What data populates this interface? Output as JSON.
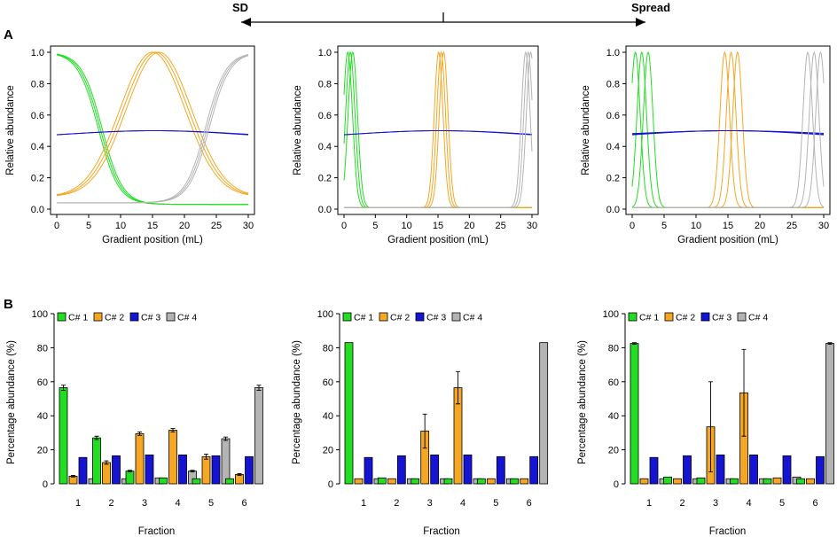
{
  "header": {
    "left_label": "SD",
    "right_label": "Spread"
  },
  "panel_labels": {
    "a": "A",
    "b": "B"
  },
  "colors": {
    "c1": "#22dd22",
    "c2": "#f5a623",
    "c3": "#1414d2",
    "c4": "#b4b4b4"
  },
  "chart_data": [
    {
      "type": "line",
      "panel": "A",
      "variant": "high SD",
      "title": "",
      "xlabel": "Gradient position (mL)",
      "ylabel": "Relative abundance",
      "xlim": [
        0,
        30
      ],
      "ylim": [
        0,
        1
      ],
      "xticks": [
        0,
        5,
        10,
        15,
        20,
        25,
        30
      ],
      "yticks": [
        0.0,
        0.2,
        0.4,
        0.6,
        0.8,
        1.0
      ],
      "series": [
        {
          "name": "C# 1",
          "shape": "sigmoid-decreasing",
          "x": [
            0,
            5,
            10,
            15,
            20,
            25,
            30
          ],
          "y": [
            1.0,
            0.78,
            0.24,
            0.06,
            0.05,
            0.04,
            0.03
          ]
        },
        {
          "name": "C# 2",
          "shape": "gaussian",
          "center": 15.5,
          "x": [
            0,
            5,
            10,
            15,
            20,
            25,
            30
          ],
          "y": [
            0.09,
            0.3,
            0.78,
            1.0,
            0.78,
            0.3,
            0.09
          ]
        },
        {
          "name": "C# 3",
          "shape": "flat",
          "x": [
            0,
            5,
            10,
            15,
            20,
            25,
            30
          ],
          "y": [
            0.44,
            0.47,
            0.49,
            0.5,
            0.49,
            0.48,
            0.47
          ]
        },
        {
          "name": "C# 4",
          "shape": "sigmoid-increasing",
          "x": [
            0,
            5,
            10,
            15,
            20,
            25,
            30
          ],
          "y": [
            0.04,
            0.04,
            0.05,
            0.07,
            0.25,
            0.75,
            1.0
          ]
        }
      ]
    },
    {
      "type": "line",
      "panel": "A",
      "variant": "low SD",
      "title": "",
      "xlabel": "Gradient position (mL)",
      "ylabel": "Relative abundance",
      "xlim": [
        0,
        30
      ],
      "ylim": [
        0,
        1
      ],
      "xticks": [
        0,
        5,
        10,
        15,
        20,
        25,
        30
      ],
      "yticks": [
        0.0,
        0.2,
        0.4,
        0.6,
        0.8,
        1.0
      ],
      "series": [
        {
          "name": "C# 1",
          "shape": "narrow-peaks",
          "centers": [
            0.6,
            1.0,
            1.4
          ],
          "x": [
            0,
            1,
            2,
            3,
            4
          ],
          "y": [
            0.8,
            1.0,
            0.6,
            0.05,
            0.0
          ]
        },
        {
          "name": "C# 2",
          "shape": "narrow-peaks",
          "centers": [
            15.1,
            15.5,
            15.9
          ],
          "x": [
            13,
            15.5,
            18
          ],
          "y": [
            0.0,
            1.0,
            0.0
          ]
        },
        {
          "name": "C# 3",
          "shape": "flat",
          "x": [
            0,
            5,
            10,
            15,
            20,
            25,
            30
          ],
          "y": [
            0.44,
            0.47,
            0.49,
            0.5,
            0.49,
            0.48,
            0.47
          ]
        },
        {
          "name": "C# 4",
          "shape": "narrow-peaks",
          "centers": [
            29.0,
            29.4,
            29.8
          ],
          "x": [
            27,
            29.4,
            30
          ],
          "y": [
            0.0,
            1.0,
            0.75
          ]
        }
      ]
    },
    {
      "type": "line",
      "panel": "A",
      "variant": "high spread",
      "title": "",
      "xlabel": "Gradient position (mL)",
      "ylabel": "Relative abundance",
      "xlim": [
        0,
        30
      ],
      "ylim": [
        0,
        1
      ],
      "xticks": [
        0,
        5,
        10,
        15,
        20,
        25,
        30
      ],
      "yticks": [
        0.0,
        0.2,
        0.4,
        0.6,
        0.8,
        1.0
      ],
      "series": [
        {
          "name": "C# 1",
          "shape": "narrow-peaks",
          "centers": [
            0.5,
            1.5,
            2.5
          ],
          "x": [
            0,
            1.5,
            4
          ],
          "y": [
            0.5,
            1.0,
            0.0
          ]
        },
        {
          "name": "C# 2",
          "shape": "narrow-peaks",
          "centers": [
            14.5,
            15.5,
            16.5
          ],
          "x": [
            12,
            15.5,
            19
          ],
          "y": [
            0.0,
            1.0,
            0.0
          ]
        },
        {
          "name": "C# 3",
          "shape": "flat",
          "x": [
            0,
            5,
            10,
            15,
            20,
            25,
            30
          ],
          "y": [
            0.45,
            0.47,
            0.49,
            0.5,
            0.49,
            0.48,
            0.47
          ]
        },
        {
          "name": "C# 4",
          "shape": "narrow-peaks",
          "centers": [
            27.5,
            28.5,
            29.5
          ],
          "x": [
            25,
            28.5,
            30
          ],
          "y": [
            0.0,
            1.0,
            0.6
          ]
        }
      ]
    },
    {
      "type": "bar",
      "panel": "B",
      "variant": "high SD",
      "title": "",
      "xlabel": "Fraction",
      "ylabel": "Percentage abundance (%)",
      "ylim": [
        0,
        100
      ],
      "yticks": [
        0,
        20,
        40,
        60,
        80,
        100
      ],
      "categories": [
        "1",
        "2",
        "3",
        "4",
        "5",
        "6"
      ],
      "series": [
        {
          "name": "C# 1",
          "values": [
            56.5,
            27,
            7.5,
            3.5,
            3,
            3
          ],
          "errors": [
            1.5,
            1,
            0.5,
            0,
            0,
            0
          ]
        },
        {
          "name": "C# 2",
          "values": [
            4.5,
            12.5,
            29.5,
            31.5,
            16,
            5.5
          ],
          "errors": [
            0.5,
            1,
            1,
            1,
            1.5,
            0.5
          ]
        },
        {
          "name": "C# 3",
          "values": [
            15.5,
            16.5,
            17,
            17,
            16.5,
            16
          ],
          "errors": [
            0,
            0,
            0,
            0,
            0,
            0
          ]
        },
        {
          "name": "C# 4",
          "values": [
            3,
            3,
            3.5,
            7.5,
            26.5,
            56.5
          ],
          "errors": [
            0,
            0,
            0,
            0.5,
            1,
            1.5
          ]
        }
      ]
    },
    {
      "type": "bar",
      "panel": "B",
      "variant": "low SD",
      "title": "",
      "xlabel": "Fraction",
      "ylabel": "Percentage abundance (%)",
      "ylim": [
        0,
        100
      ],
      "yticks": [
        0,
        20,
        40,
        60,
        80,
        100
      ],
      "categories": [
        "1",
        "2",
        "3",
        "4",
        "5",
        "6"
      ],
      "series": [
        {
          "name": "C# 1",
          "values": [
            83,
            3.5,
            3,
            3,
            3,
            3
          ],
          "errors": [
            0,
            0,
            0,
            0,
            0,
            0
          ]
        },
        {
          "name": "C# 2",
          "values": [
            3,
            3,
            31,
            56.5,
            3,
            3
          ],
          "errors": [
            0,
            0,
            10,
            9.5,
            0,
            0
          ]
        },
        {
          "name": "C# 3",
          "values": [
            15.5,
            16.5,
            17,
            17,
            16,
            16
          ],
          "errors": [
            0,
            0,
            0,
            0,
            0,
            0
          ]
        },
        {
          "name": "C# 4",
          "values": [
            3,
            3,
            3,
            3,
            3,
            83
          ],
          "errors": [
            0,
            0,
            0,
            0,
            0,
            0
          ]
        }
      ]
    },
    {
      "type": "bar",
      "panel": "B",
      "variant": "high spread",
      "title": "",
      "xlabel": "Fraction",
      "ylabel": "Percentage abundance (%)",
      "ylim": [
        0,
        100
      ],
      "yticks": [
        0,
        20,
        40,
        60,
        80,
        100
      ],
      "categories": [
        "1",
        "2",
        "3",
        "4",
        "5",
        "6"
      ],
      "series": [
        {
          "name": "C# 1",
          "values": [
            82.5,
            4,
            3.5,
            3,
            3,
            3
          ],
          "errors": [
            0.5,
            0,
            0,
            0,
            0,
            0
          ]
        },
        {
          "name": "C# 2",
          "values": [
            3,
            3,
            33.5,
            53.5,
            3.5,
            3
          ],
          "errors": [
            0,
            0,
            26.5,
            25.5,
            0,
            0
          ]
        },
        {
          "name": "C# 3",
          "values": [
            15.5,
            16.5,
            17,
            17,
            16.5,
            16
          ],
          "errors": [
            0,
            0,
            0,
            0,
            0,
            0
          ]
        },
        {
          "name": "C# 4",
          "values": [
            3,
            3,
            3,
            3,
            4,
            82.5
          ],
          "errors": [
            0,
            0,
            0,
            0,
            0,
            0.5
          ]
        }
      ]
    }
  ]
}
